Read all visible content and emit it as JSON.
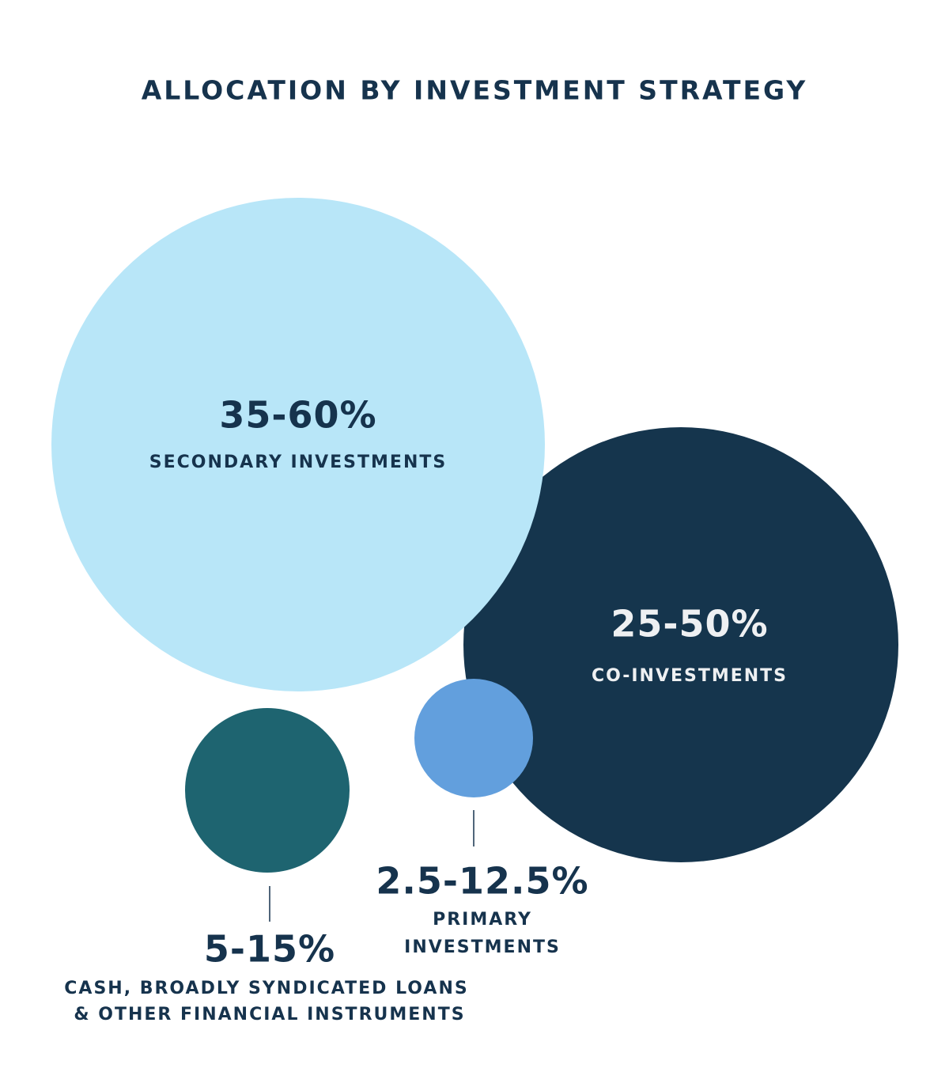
{
  "title": "ALLOCATION BY INVESTMENT STRATEGY",
  "nodes": [
    {
      "range": "35-60%",
      "label": [
        "SECONDARY INVESTMENTS"
      ]
    },
    {
      "range": "25-50%",
      "label": [
        "CO-INVESTMENTS"
      ]
    },
    {
      "range": "2.5-12.5%",
      "label": [
        "PRIMARY",
        "INVESTMENTS"
      ]
    },
    {
      "range": "5-15%",
      "label": [
        "CASH, BROADLY SYNDICATED LOANS",
        "& OTHER FINANCIAL INSTRUMENTS"
      ]
    }
  ]
}
